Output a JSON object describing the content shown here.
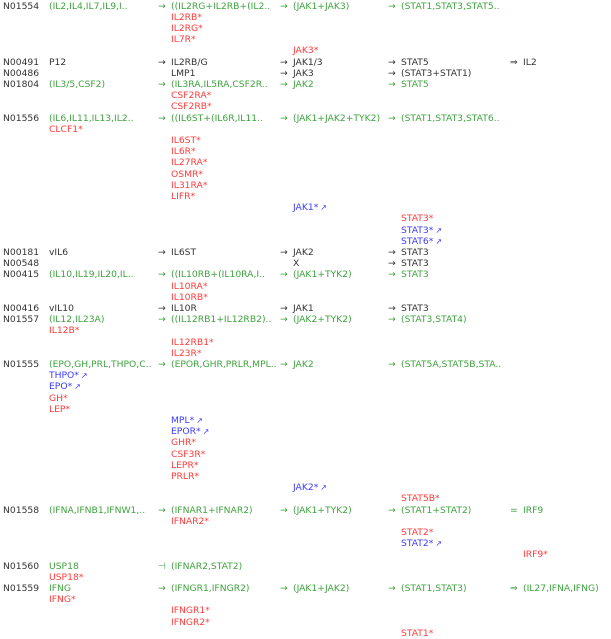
{
  "colors": {
    "k": "#333333",
    "g": "#3fa33f",
    "r": "#ff3b3b",
    "b": "#3b3bff"
  },
  "rows": [
    {
      "id": "N01554",
      "cells": [
        {
          "col": 1,
          "c": "g",
          "t": "(IL2,IL4,IL7,IL9,I.."
        },
        {
          "col": 2,
          "c": "g",
          "a": "→",
          "t": "((IL2RG+IL2RB+(IL2.."
        },
        {
          "col": 3,
          "c": "g",
          "a": "→",
          "t": "(JAK1+JAK3)"
        },
        {
          "col": 4,
          "c": "g",
          "a": "→",
          "t": "(STAT1,STAT3,STAT5.."
        }
      ]
    },
    {
      "cells": [
        {
          "col": 2,
          "c": "r",
          "t": "IL2RB*"
        }
      ]
    },
    {
      "cells": [
        {
          "col": 2,
          "c": "r",
          "t": "IL2RG*"
        }
      ]
    },
    {
      "cells": [
        {
          "col": 2,
          "c": "r",
          "t": "IL7R*"
        }
      ]
    },
    {
      "cells": [
        {
          "col": 3,
          "c": "r",
          "t": "JAK3*"
        }
      ]
    },
    {
      "id": "N00491",
      "cells": [
        {
          "col": 1,
          "c": "k",
          "t": "P12"
        },
        {
          "col": 2,
          "c": "k",
          "a": "→",
          "t": "IL2RB/G"
        },
        {
          "col": 3,
          "c": "k",
          "a": "→",
          "t": "JAK1/3"
        },
        {
          "col": 4,
          "c": "k",
          "a": "→",
          "t": "STAT5"
        },
        {
          "col": 5,
          "c": "k",
          "a": "⇒",
          "t": "IL2"
        }
      ]
    },
    {
      "id": "N00486",
      "cells": [
        {
          "col": 2,
          "c": "k",
          "t": "LMP1"
        },
        {
          "col": 3,
          "c": "k",
          "a": "→",
          "t": "JAK3"
        },
        {
          "col": 4,
          "c": "k",
          "a": "→",
          "t": "(STAT3+STAT1)"
        }
      ]
    },
    {
      "id": "N01804",
      "cells": [
        {
          "col": 1,
          "c": "g",
          "t": "(IL3/5,CSF2)"
        },
        {
          "col": 2,
          "c": "g",
          "a": "→",
          "t": "(IL3RA,IL5RA,CSF2R.."
        },
        {
          "col": 3,
          "c": "g",
          "a": "→",
          "t": "JAK2"
        },
        {
          "col": 4,
          "c": "g",
          "a": "→",
          "t": "STAT5"
        }
      ]
    },
    {
      "cells": [
        {
          "col": 2,
          "c": "r",
          "t": "CSF2RA*"
        }
      ]
    },
    {
      "cells": [
        {
          "col": 2,
          "c": "r",
          "t": "CSF2RB*"
        }
      ]
    },
    {
      "id": "N01556",
      "cells": [
        {
          "col": 1,
          "c": "g",
          "t": "(IL6,IL11,IL13,IL2.."
        },
        {
          "col": 2,
          "c": "g",
          "a": "→",
          "t": "((IL6ST+(IL6R,IL11.."
        },
        {
          "col": 3,
          "c": "g",
          "a": "→",
          "t": "(JAK1+JAK2+TYK2)"
        },
        {
          "col": 4,
          "c": "g",
          "a": "→",
          "t": "(STAT1,STAT3,STAT6.."
        }
      ]
    },
    {
      "cells": [
        {
          "col": 1,
          "c": "r",
          "t": "CLCF1*"
        }
      ]
    },
    {
      "cells": [
        {
          "col": 2,
          "c": "r",
          "t": "IL6ST*"
        }
      ]
    },
    {
      "cells": [
        {
          "col": 2,
          "c": "r",
          "t": "IL6R*"
        }
      ]
    },
    {
      "cells": [
        {
          "col": 2,
          "c": "r",
          "t": "IL27RA*"
        }
      ]
    },
    {
      "cells": [
        {
          "col": 2,
          "c": "r",
          "t": "OSMR*"
        }
      ]
    },
    {
      "cells": [
        {
          "col": 2,
          "c": "r",
          "t": "IL31RA*"
        }
      ]
    },
    {
      "cells": [
        {
          "col": 2,
          "c": "r",
          "t": "LIFR*"
        }
      ]
    },
    {
      "cells": [
        {
          "col": 3,
          "c": "b",
          "t": "JAK1*",
          "link": "↗"
        }
      ]
    },
    {
      "cells": [
        {
          "col": 4,
          "c": "r",
          "t": "STAT3*"
        }
      ]
    },
    {
      "cells": [
        {
          "col": 4,
          "c": "b",
          "t": "STAT3*",
          "link": "↗"
        }
      ]
    },
    {
      "cells": [
        {
          "col": 4,
          "c": "b",
          "t": "STAT6*",
          "link": "↗"
        }
      ]
    },
    {
      "id": "N00181",
      "cells": [
        {
          "col": 1,
          "c": "k",
          "t": "vIL6"
        },
        {
          "col": 2,
          "c": "k",
          "a": "→",
          "t": "IL6ST"
        },
        {
          "col": 3,
          "c": "k",
          "a": "→",
          "t": "JAK2"
        },
        {
          "col": 4,
          "c": "k",
          "a": "→",
          "t": "STAT3"
        }
      ]
    },
    {
      "id": "N00548",
      "cells": [
        {
          "col": 3,
          "c": "k",
          "t": "X"
        },
        {
          "col": 4,
          "c": "k",
          "a": "→",
          "t": "STAT3"
        }
      ]
    },
    {
      "id": "N00415",
      "cells": [
        {
          "col": 1,
          "c": "g",
          "t": "(IL10,IL19,IL20,IL.."
        },
        {
          "col": 2,
          "c": "g",
          "a": "→",
          "t": "((IL10RB+(IL10RA,I.."
        },
        {
          "col": 3,
          "c": "g",
          "a": "→",
          "t": "(JAK1+TYK2)"
        },
        {
          "col": 4,
          "c": "g",
          "a": "→",
          "t": "STAT3"
        }
      ]
    },
    {
      "cells": [
        {
          "col": 2,
          "c": "r",
          "t": "IL10RA*"
        }
      ]
    },
    {
      "cells": [
        {
          "col": 2,
          "c": "r",
          "t": "IL10RB*"
        }
      ]
    },
    {
      "id": "N00416",
      "cells": [
        {
          "col": 1,
          "c": "k",
          "t": "vIL10"
        },
        {
          "col": 2,
          "c": "k",
          "a": "→",
          "t": "IL10R"
        },
        {
          "col": 3,
          "c": "k",
          "a": "→",
          "t": "JAK1"
        },
        {
          "col": 4,
          "c": "k",
          "a": "→",
          "t": "STAT3"
        }
      ]
    },
    {
      "id": "N01557",
      "cells": [
        {
          "col": 1,
          "c": "g",
          "t": "(IL12,IL23A)"
        },
        {
          "col": 2,
          "c": "g",
          "a": "→",
          "t": "((IL12RB1+IL12RB2).."
        },
        {
          "col": 3,
          "c": "g",
          "a": "→",
          "t": "(JAK2+TYK2)"
        },
        {
          "col": 4,
          "c": "g",
          "a": "→",
          "t": "(STAT3,STAT4)"
        }
      ]
    },
    {
      "cells": [
        {
          "col": 1,
          "c": "r",
          "t": "IL12B*"
        }
      ]
    },
    {
      "cells": [
        {
          "col": 2,
          "c": "r",
          "t": "IL12RB1*"
        }
      ]
    },
    {
      "cells": [
        {
          "col": 2,
          "c": "r",
          "t": "IL23R*"
        }
      ]
    },
    {
      "id": "N01555",
      "cells": [
        {
          "col": 1,
          "c": "g",
          "t": "(EPO,GH,PRL,THPO,C.."
        },
        {
          "col": 2,
          "c": "g",
          "a": "→",
          "t": "(EPOR,GHR,PRLR,MPL.."
        },
        {
          "col": 3,
          "c": "g",
          "a": "→",
          "t": "JAK2"
        },
        {
          "col": 4,
          "c": "g",
          "a": "→",
          "t": "(STAT5A,STAT5B,STA.."
        }
      ]
    },
    {
      "cells": [
        {
          "col": 1,
          "c": "b",
          "t": "THPO*",
          "link": "↗"
        }
      ]
    },
    {
      "cells": [
        {
          "col": 1,
          "c": "b",
          "t": "EPO*",
          "link": "↗"
        }
      ]
    },
    {
      "cells": [
        {
          "col": 1,
          "c": "r",
          "t": "GH*"
        }
      ]
    },
    {
      "cells": [
        {
          "col": 1,
          "c": "r",
          "t": "LEP*"
        }
      ]
    },
    {
      "cells": [
        {
          "col": 2,
          "c": "b",
          "t": "MPL*",
          "link": "↗"
        }
      ]
    },
    {
      "cells": [
        {
          "col": 2,
          "c": "b",
          "t": "EPOR*",
          "link": "↗"
        }
      ]
    },
    {
      "cells": [
        {
          "col": 2,
          "c": "r",
          "t": "GHR*"
        }
      ]
    },
    {
      "cells": [
        {
          "col": 2,
          "c": "r",
          "t": "CSF3R*"
        }
      ]
    },
    {
      "cells": [
        {
          "col": 2,
          "c": "r",
          "t": "LEPR*"
        }
      ]
    },
    {
      "cells": [
        {
          "col": 2,
          "c": "r",
          "t": "PRLR*"
        }
      ]
    },
    {
      "cells": [
        {
          "col": 3,
          "c": "b",
          "t": "JAK2*",
          "link": "↗"
        }
      ]
    },
    {
      "cells": [
        {
          "col": 4,
          "c": "r",
          "t": "STAT5B*"
        }
      ]
    },
    {
      "id": "N01558",
      "cells": [
        {
          "col": 1,
          "c": "g",
          "t": "(IFNA,IFNB1,IFNW1,.."
        },
        {
          "col": 2,
          "c": "g",
          "a": "→",
          "t": "(IFNAR1+IFNAR2)"
        },
        {
          "col": 3,
          "c": "g",
          "a": "→",
          "t": "(JAK1+TYK2)"
        },
        {
          "col": 4,
          "c": "g",
          "a": "→",
          "t": "(STAT1+STAT2)"
        },
        {
          "col": 5,
          "c": "g",
          "a": "=",
          "t": "IRF9"
        }
      ]
    },
    {
      "cells": [
        {
          "col": 2,
          "c": "r",
          "t": "IFNAR2*"
        }
      ]
    },
    {
      "cells": [
        {
          "col": 4,
          "c": "r",
          "t": "STAT2*"
        }
      ]
    },
    {
      "cells": [
        {
          "col": 4,
          "c": "b",
          "t": "STAT2*",
          "link": "↗"
        }
      ]
    },
    {
      "cells": [
        {
          "col": 5,
          "c": "r",
          "t": "IRF9*"
        }
      ]
    },
    {
      "id": "N01560",
      "cells": [
        {
          "col": 1,
          "c": "g",
          "t": "USP18"
        },
        {
          "col": 2,
          "c": "g",
          "a": "⊣",
          "t": "(IFNAR2,STAT2)"
        }
      ]
    },
    {
      "cells": [
        {
          "col": 1,
          "c": "r",
          "t": "USP18*"
        }
      ]
    },
    {
      "id": "N01559",
      "cells": [
        {
          "col": 1,
          "c": "g",
          "t": "IFNG"
        },
        {
          "col": 2,
          "c": "g",
          "a": "→",
          "t": "(IFNGR1,IFNGR2)"
        },
        {
          "col": 3,
          "c": "g",
          "a": "→",
          "t": "(JAK1+JAK2)"
        },
        {
          "col": 4,
          "c": "g",
          "a": "→",
          "t": "(STAT1,STAT3)"
        },
        {
          "col": 5,
          "c": "g",
          "a": "⇒",
          "t": "(IL27,IFNA,IFNG)"
        }
      ]
    },
    {
      "cells": [
        {
          "col": 1,
          "c": "r",
          "t": "IFNG*"
        }
      ]
    },
    {
      "cells": [
        {
          "col": 2,
          "c": "r",
          "t": "IFNGR1*"
        }
      ]
    },
    {
      "cells": [
        {
          "col": 2,
          "c": "r",
          "t": "IFNGR2*"
        }
      ]
    },
    {
      "cells": [
        {
          "col": 4,
          "c": "r",
          "t": "STAT1*"
        }
      ]
    }
  ]
}
